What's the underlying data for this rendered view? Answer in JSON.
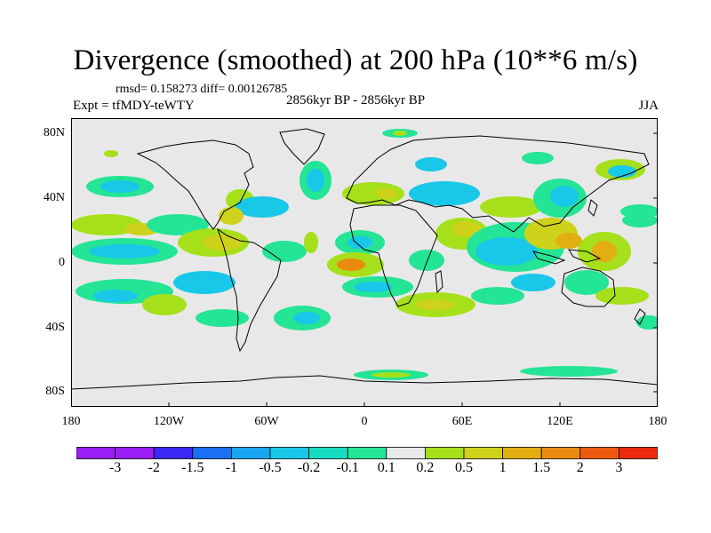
{
  "header": {
    "title": "Divergence (smoothed) at 200 hPa (10**6 m/s)",
    "stats": "rmsd= 0.158273 diff= 0.00126785",
    "experiment": "Expt = tfMDY-teWTY",
    "period": "2856kyr BP - 2856kyr BP",
    "season": "JJA"
  },
  "axes": {
    "lat_labels": [
      "80N",
      "40N",
      "0",
      "40S",
      "80S"
    ],
    "lon_labels": [
      "180",
      "120W",
      "60W",
      "0",
      "60E",
      "120E",
      "180"
    ]
  },
  "colorbar": {
    "labels": [
      "-3",
      "-2",
      "-1.5",
      "-1",
      "-0.5",
      "-0.2",
      "-0.1",
      "0.1",
      "0.2",
      "0.5",
      "1",
      "1.5",
      "2",
      "3"
    ],
    "colors": [
      "#9a1ef5",
      "#3a28f2",
      "#1a6ff2",
      "#1aa5f0",
      "#19c7e8",
      "#18dcc2",
      "#24e495",
      "#e8e8e8",
      "#a6e01a",
      "#cfd21a",
      "#e2ae12",
      "#ea8a10",
      "#ec5a10",
      "#ec2a10"
    ]
  },
  "map_colors": {
    "background": "#e8e8e8",
    "coast": "#000000",
    "cyan": "#19c7e8",
    "blue": "#1aa5f0",
    "teal": "#24e495",
    "lightgreen": "#a6e01a",
    "yellowgreen": "#cfd21a",
    "orange": "#e2ae12",
    "darkorange": "#ea8a10"
  }
}
